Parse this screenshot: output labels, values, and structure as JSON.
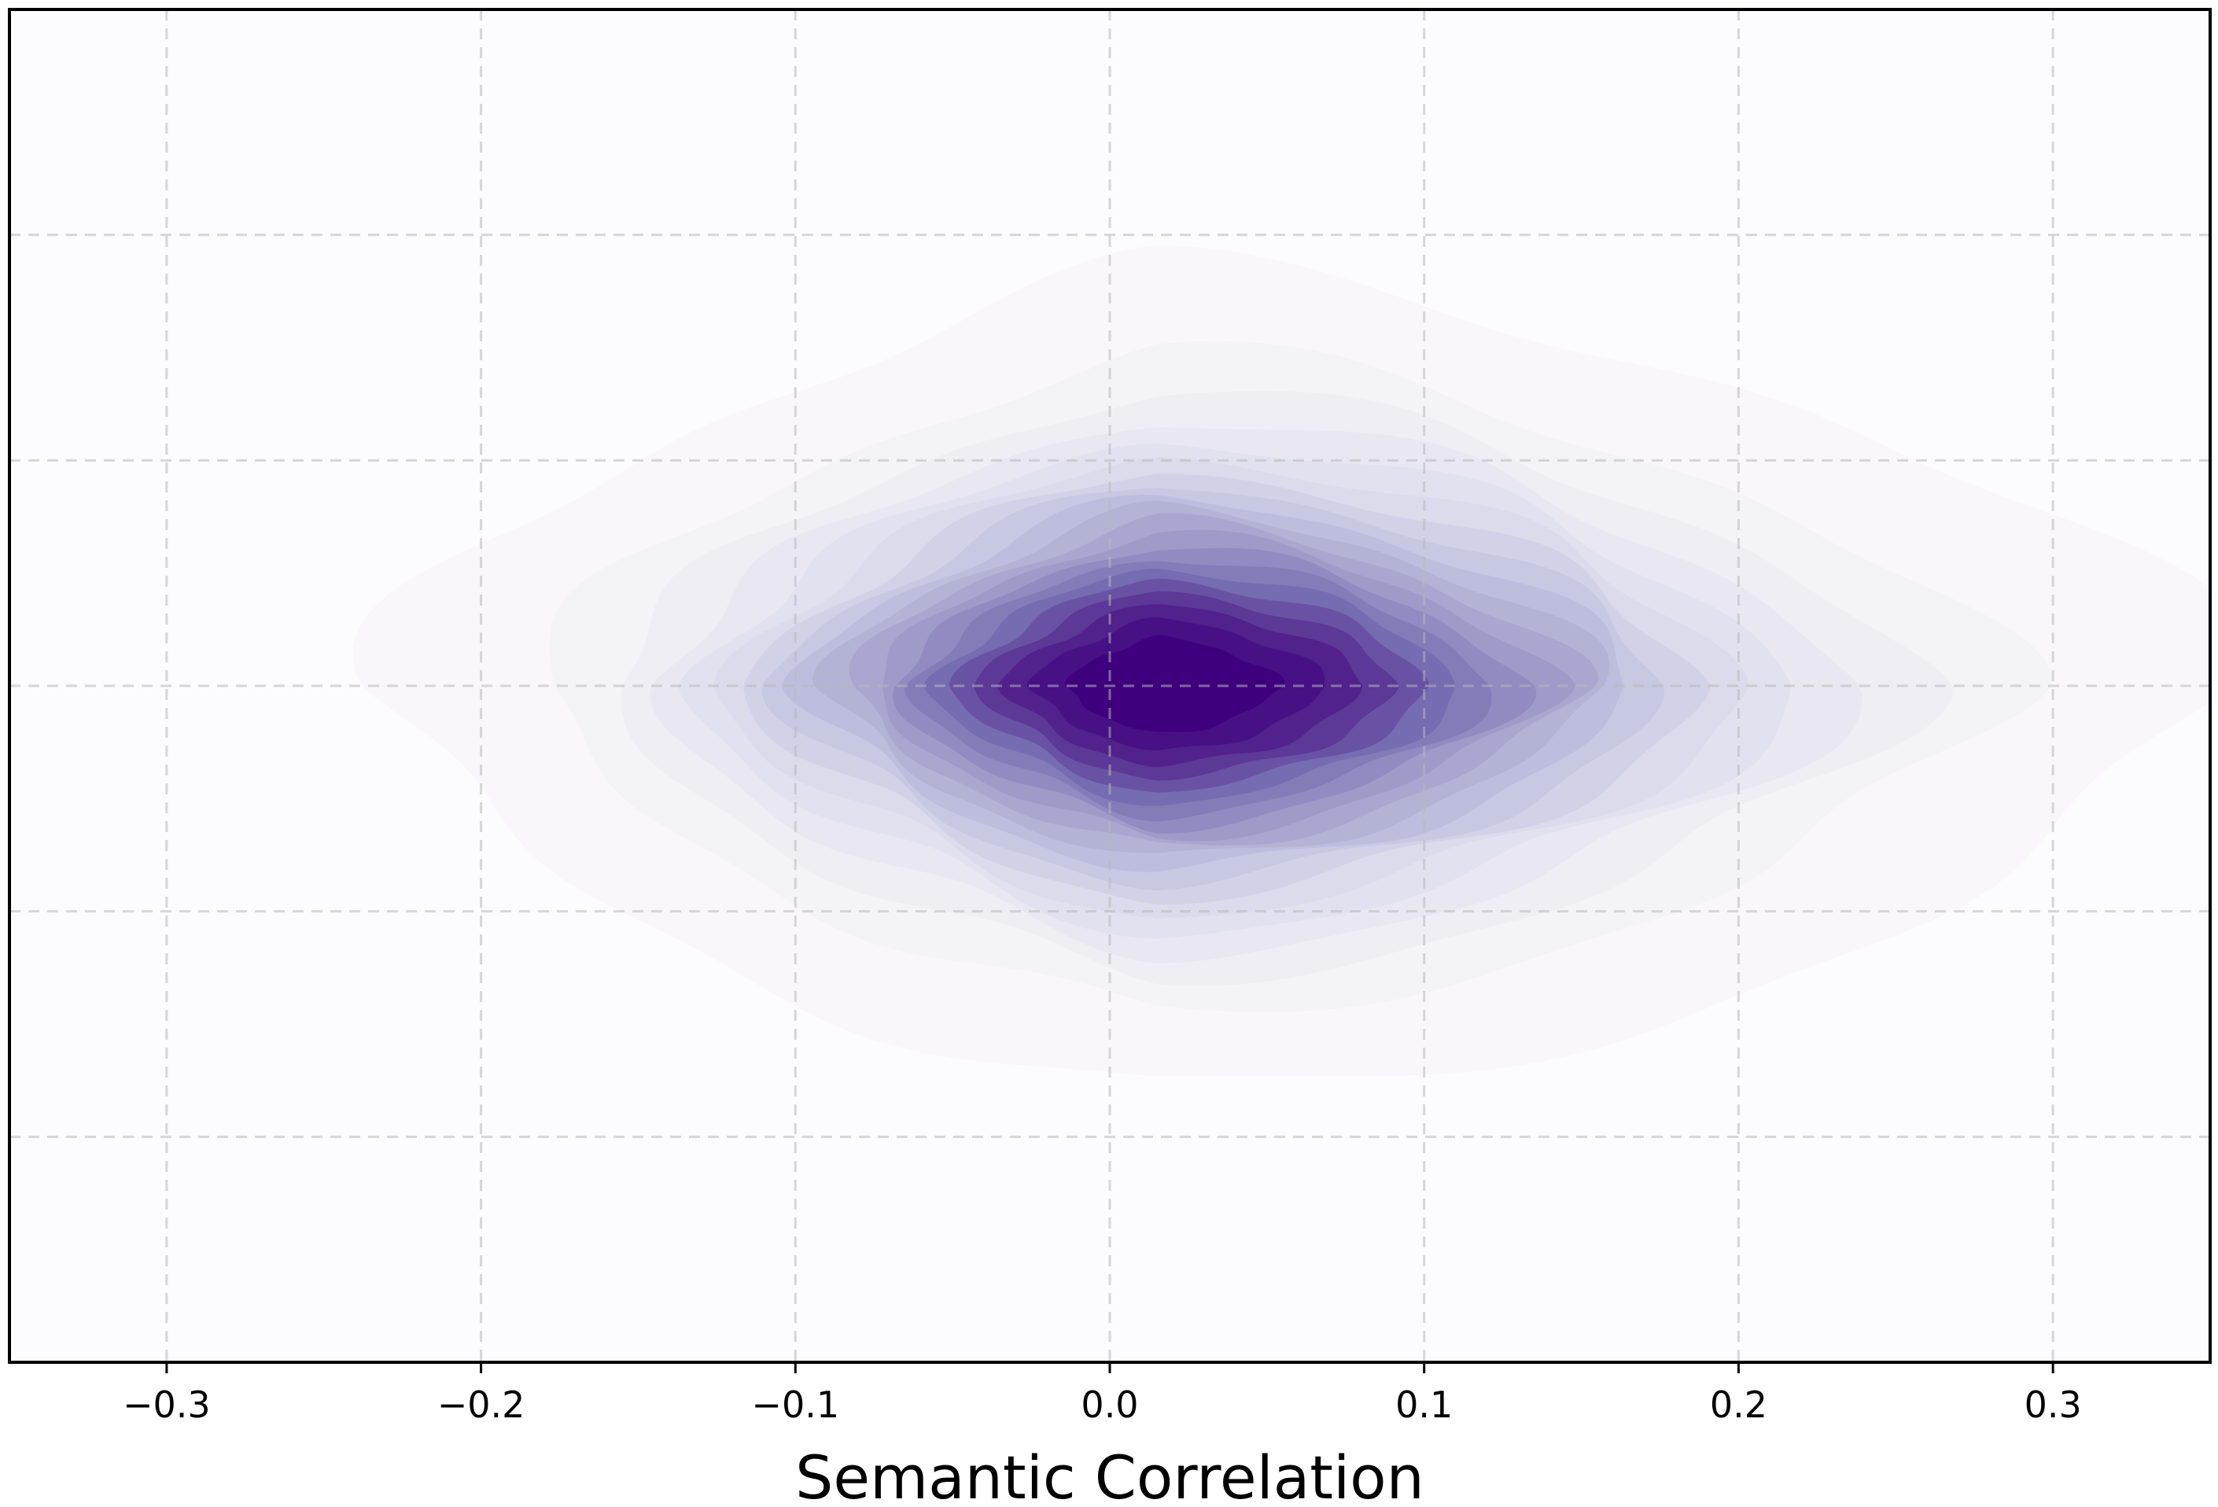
{
  "chart_data": {
    "type": "heatmap",
    "subtype": "kde-contour-filled",
    "colormap": "Purples",
    "colors": {
      "low": "#fcfbfd",
      "mid": "#9e9ac8",
      "high": "#3f007d"
    },
    "xlabel": "Semantic Correlation",
    "ylabel": "",
    "xlim": [
      -0.35,
      0.35
    ],
    "x_ticks": [
      -0.3,
      -0.2,
      -0.1,
      0.0,
      0.1,
      0.2,
      0.3
    ],
    "x_tick_labels": [
      "−0.3",
      "−0.2",
      "−0.1",
      "0.0",
      "0.1",
      "0.2",
      "0.3"
    ],
    "ylim": [
      0,
      6
    ],
    "y_gridlines": [
      1,
      2,
      3,
      4,
      5
    ],
    "y_tick_labels": [],
    "grid": true,
    "levels": 20,
    "density_peak": {
      "x": 0.015,
      "y": 3.0
    },
    "spread": {
      "x_sd_left": 0.085,
      "x_sd_right": 0.115,
      "y_sd": 0.62
    }
  }
}
